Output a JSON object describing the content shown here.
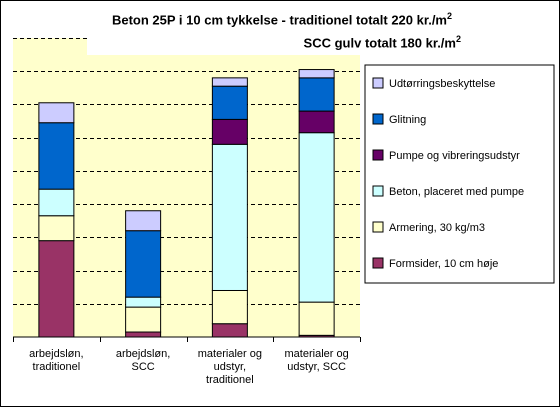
{
  "chart_data": {
    "type": "bar",
    "stacked": true,
    "title_line1": "Beton 25P i 10 cm tykkelse - traditionel totalt 220 kr./m",
    "title_line1_sup": "2",
    "title_line2": "SCC gulv totalt 180 kr./m",
    "title_line2_sup": "2",
    "categories": [
      [
        "arbejdsløn,",
        "traditionel"
      ],
      [
        "arbejdsløn,",
        "SCC"
      ],
      [
        "materialer og",
        "udstyr,",
        "traditionel"
      ],
      [
        "materialer og",
        "udstyr, SCC"
      ]
    ],
    "series": [
      {
        "name": "Formsider, 10 cm høje",
        "color": "#993366",
        "values": [
          29,
          1.5,
          4,
          0.5
        ]
      },
      {
        "name": "Armering, 30 kg/m3",
        "color": "#FFFFCC",
        "values": [
          7.5,
          7.5,
          10,
          10
        ]
      },
      {
        "name": "Beton, placeret med pumpe",
        "color": "#CCFFFF",
        "values": [
          8,
          3,
          44,
          51
        ]
      },
      {
        "name": "Pumpe og vibreringsudstyr",
        "color": "#660066",
        "values": [
          0,
          0,
          7.5,
          6.5
        ]
      },
      {
        "name": "Glitning",
        "color": "#0066CC",
        "values": [
          20,
          20,
          10,
          10
        ]
      },
      {
        "name": "Udtørringsbeskyttelse",
        "color": "#CCCCFF",
        "values": [
          6,
          6,
          2.5,
          2.5
        ]
      }
    ],
    "ylim": [
      0,
      90
    ],
    "grid": true,
    "legend_position": "right"
  }
}
